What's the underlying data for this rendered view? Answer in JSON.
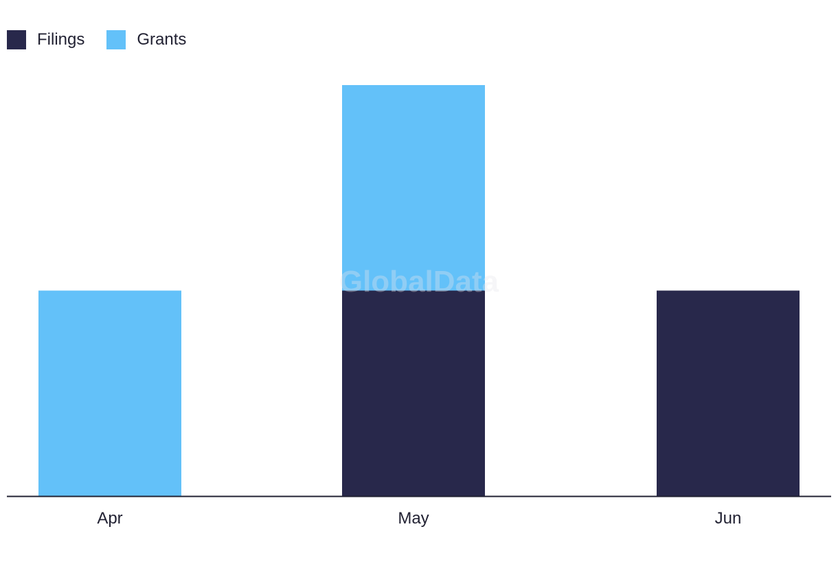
{
  "chart_data": {
    "type": "bar",
    "stacked": true,
    "categories": [
      "Apr",
      "May",
      "Jun"
    ],
    "series": [
      {
        "name": "Filings",
        "values": [
          0,
          1,
          1
        ],
        "color": "#28284b"
      },
      {
        "name": "Grants",
        "values": [
          1,
          1,
          0
        ],
        "color": "#63c1f9"
      }
    ],
    "title": "",
    "xlabel": "",
    "ylabel": "",
    "ylim": [
      0,
      2
    ],
    "grid": false,
    "legend_position": "top-left",
    "watermark": "GlobalData"
  }
}
